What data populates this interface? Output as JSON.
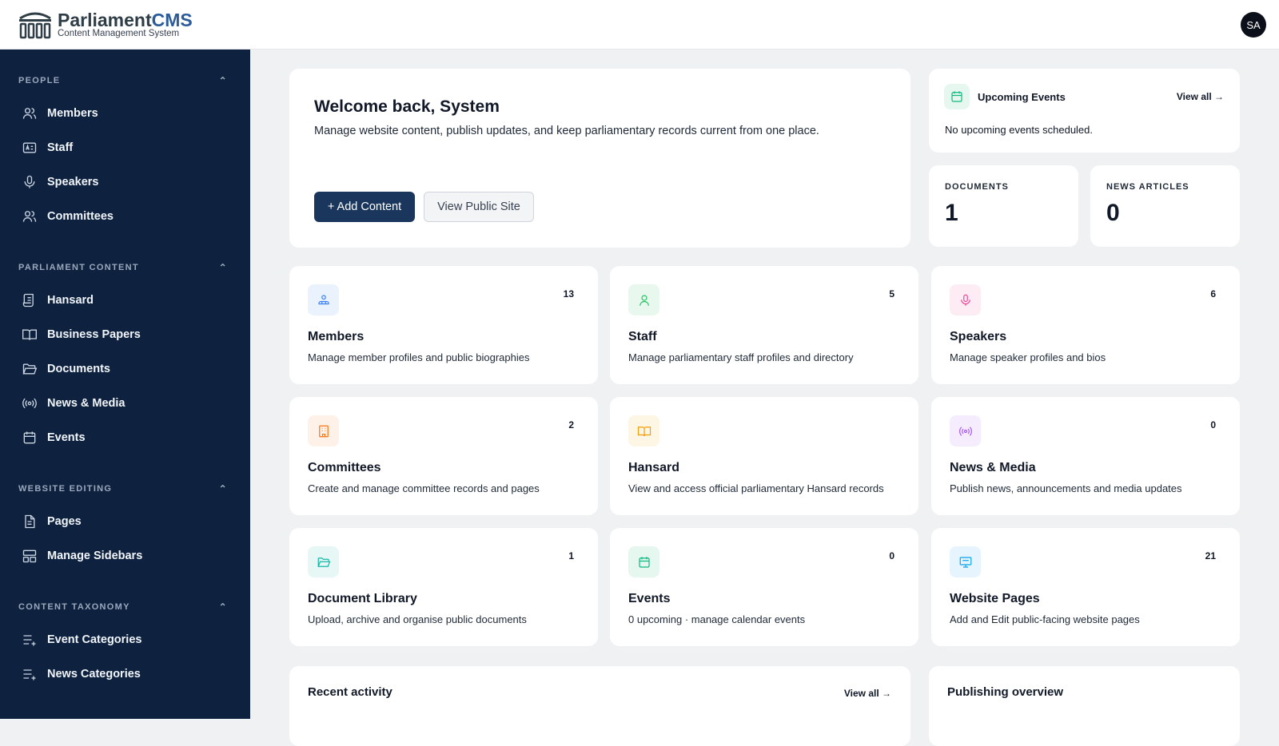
{
  "app": {
    "name_main": "Parliament",
    "name_accent": "CMS",
    "subtitle": "Content Management System",
    "user_initials": "SA"
  },
  "sidebar": {
    "sections": [
      {
        "title": "PEOPLE",
        "items": [
          {
            "label": "Members",
            "icon": "users-icon"
          },
          {
            "label": "Staff",
            "icon": "id-card-icon"
          },
          {
            "label": "Speakers",
            "icon": "microphone-icon"
          },
          {
            "label": "Committees",
            "icon": "users-icon"
          }
        ]
      },
      {
        "title": "PARLIAMENT CONTENT",
        "items": [
          {
            "label": "Hansard",
            "icon": "scroll-icon"
          },
          {
            "label": "Business Papers",
            "icon": "book-open-icon"
          },
          {
            "label": "Documents",
            "icon": "folder-open-icon"
          },
          {
            "label": "News & Media",
            "icon": "broadcast-icon"
          },
          {
            "label": "Events",
            "icon": "calendar-icon"
          }
        ]
      },
      {
        "title": "WEBSITE EDITING",
        "items": [
          {
            "label": "Pages",
            "icon": "file-text-icon"
          },
          {
            "label": "Manage Sidebars",
            "icon": "layout-icon"
          }
        ]
      },
      {
        "title": "CONTENT TAXONOMY",
        "items": [
          {
            "label": "Event Categories",
            "icon": "list-plus-icon"
          },
          {
            "label": "News Categories",
            "icon": "list-plus-icon"
          }
        ]
      }
    ]
  },
  "welcome": {
    "title": "Welcome back, System",
    "text": "Manage website content, publish updates, and keep parliamentary records current from one place.",
    "add_label": "+ Add Content",
    "view_label": "View Public Site"
  },
  "events": {
    "title": "Upcoming Events",
    "view_all": "View all →",
    "empty": "No upcoming events scheduled."
  },
  "stats": [
    {
      "label": "DOCUMENTS",
      "value": "1"
    },
    {
      "label": "NEWS ARTICLES",
      "value": "0"
    }
  ],
  "modules": [
    {
      "title": "Members",
      "desc": "Manage member profiles and public biographies",
      "count": "13",
      "color": "#3b82f6",
      "bg": "#eaf2fe"
    },
    {
      "title": "Staff",
      "desc": "Manage parliamentary staff profiles and directory",
      "count": "5",
      "color": "#22c55e",
      "bg": "#e8f8ee"
    },
    {
      "title": "Speakers",
      "desc": "Manage speaker profiles and bios",
      "count": "6",
      "color": "#ec4899",
      "bg": "#fdecf4"
    },
    {
      "title": "Committees",
      "desc": "Create and manage committee records and pages",
      "count": "2",
      "color": "#f97316",
      "bg": "#fef1e7"
    },
    {
      "title": "Hansard",
      "desc": "View and access official parliamentary Hansard records",
      "count": "",
      "color": "#f59e0b",
      "bg": "#fef6e4"
    },
    {
      "title": "News & Media",
      "desc": "Publish news, announcements and media updates",
      "count": "0",
      "color": "#a855f7",
      "bg": "#f5ecfe"
    },
    {
      "title": "Document Library",
      "desc": "Upload, archive and organise public documents",
      "count": "1",
      "color": "#14b8a6",
      "bg": "#e6f7f5"
    },
    {
      "title": "Events",
      "desc": "0 upcoming · manage calendar events",
      "count": "0",
      "color": "#10b981",
      "bg": "#e6f7ef"
    },
    {
      "title": "Website Pages",
      "desc": "Add and Edit public-facing website pages",
      "count": "21",
      "color": "#0ea5e9",
      "bg": "#e6f5fd"
    }
  ],
  "recent": {
    "title": "Recent activity",
    "view_all": "View all →"
  },
  "publishing": {
    "title": "Publishing overview"
  }
}
